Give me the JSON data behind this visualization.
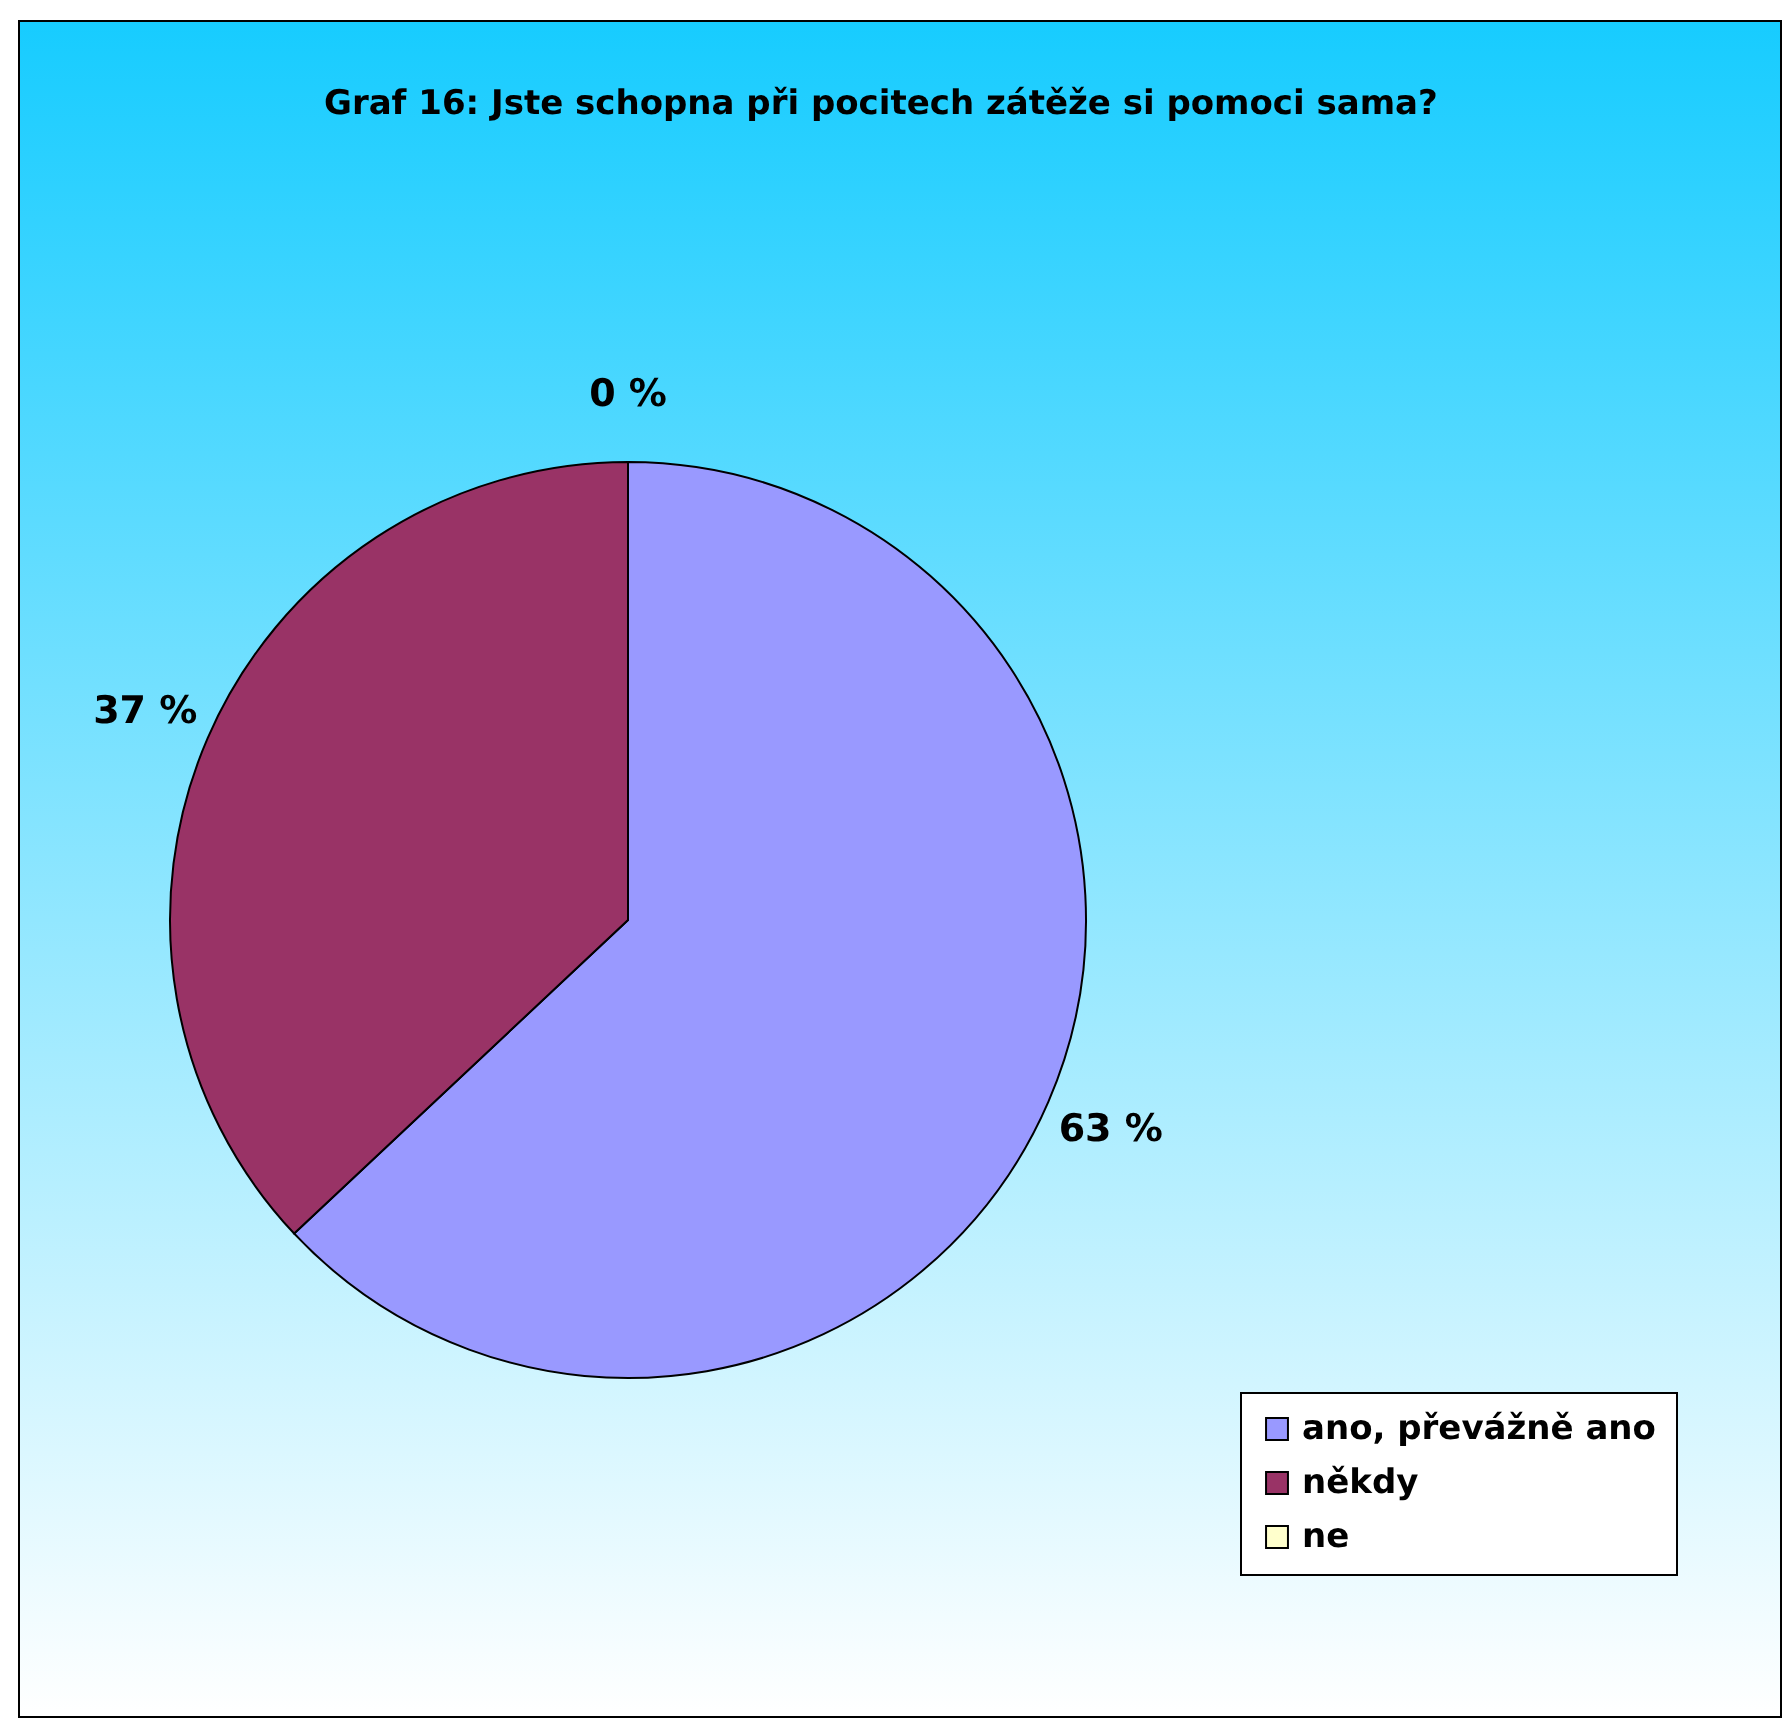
{
  "chart_data": {
    "type": "pie",
    "title": "Graf 16: Jste schopna při pocitech zátěže si pomoci sama?",
    "categories": [
      "ano, převážně ano",
      "někdy",
      "ne"
    ],
    "values": [
      63,
      37,
      0
    ],
    "colors": [
      "#9999ff",
      "#993366",
      "#ffffcc"
    ],
    "value_labels": [
      "63 %",
      "37 %",
      "0 %"
    ],
    "legend": "bottom right"
  }
}
